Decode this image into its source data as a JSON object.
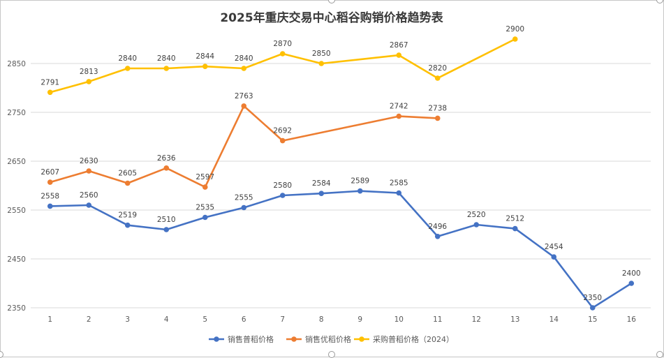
{
  "colors": {
    "series1": "#4472C4",
    "series2": "#ED7D31",
    "series3": "#FFC000",
    "grid": "#d9d9d9",
    "axis_text": "#595959",
    "title_text": "#3a3a3a"
  },
  "chart_data": {
    "type": "line",
    "title": "2025年重庆交易中心稻谷购销价格趋势表",
    "xlabel": "",
    "ylabel": "",
    "x": [
      "1",
      "2",
      "3",
      "4",
      "5",
      "6",
      "7",
      "8",
      "9",
      "10",
      "11",
      "12",
      "13",
      "14",
      "15",
      "16"
    ],
    "ylim": [
      2350,
      2900
    ],
    "yticks": [
      2350,
      2450,
      2550,
      2650,
      2750,
      2850
    ],
    "grid": true,
    "legend_position": "bottom",
    "series": [
      {
        "name": "销售普稻价格",
        "color_key": "series1",
        "values": [
          2558,
          2560,
          2519,
          2510,
          2535,
          2555,
          2580,
          2584,
          2589,
          2585,
          2496,
          2520,
          2512,
          2454,
          2350,
          2400
        ]
      },
      {
        "name": "销售优稻价格",
        "color_key": "series2",
        "values": [
          2607,
          2630,
          2605,
          2636,
          2597,
          2763,
          2692,
          null,
          null,
          2742,
          2738,
          null,
          null,
          null,
          null,
          null
        ]
      },
      {
        "name": "采购普稻价格（2024）",
        "color_key": "series3",
        "values": [
          2791,
          2813,
          2840,
          2840,
          2844,
          2840,
          2870,
          2850,
          null,
          2867,
          2820,
          null,
          2900,
          null,
          null,
          null
        ]
      }
    ]
  }
}
